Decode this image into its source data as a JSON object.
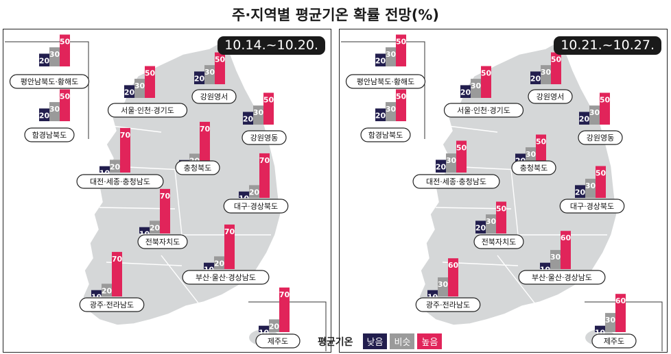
{
  "title": "주·지역별 평균기온 확률 전망(%)",
  "legend": {
    "title": "평균기온",
    "low": "낮음",
    "mid": "비슷",
    "high": "높음"
  },
  "colors": {
    "low": "#221e4e",
    "mid": "#9a9a9a",
    "high": "#e1245a",
    "map": "#d5d7d8"
  },
  "chart_data": [
    {
      "type": "bar",
      "period": "10.14.~10.20.",
      "categories": [
        "낮음",
        "비슷",
        "높음"
      ],
      "regions": [
        {
          "name": "평안남북도·황해도",
          "values": [
            20,
            30,
            50
          ]
        },
        {
          "name": "함경남북도",
          "values": [
            20,
            30,
            50
          ]
        },
        {
          "name": "서울·인천·경기도",
          "values": [
            20,
            30,
            50
          ]
        },
        {
          "name": "강원영서",
          "values": [
            20,
            30,
            50
          ]
        },
        {
          "name": "강원영동",
          "values": [
            20,
            30,
            50
          ]
        },
        {
          "name": "대전·세종·충청남도",
          "values": [
            10,
            20,
            70
          ]
        },
        {
          "name": "충청북도",
          "values": [
            10,
            20,
            70
          ]
        },
        {
          "name": "대구·경상북도",
          "values": [
            10,
            20,
            70
          ]
        },
        {
          "name": "전북자치도",
          "values": [
            10,
            20,
            70
          ]
        },
        {
          "name": "부산·울산·경상남도",
          "values": [
            10,
            20,
            70
          ]
        },
        {
          "name": "광주·전라남도",
          "values": [
            10,
            20,
            70
          ]
        },
        {
          "name": "제주도",
          "values": [
            10,
            20,
            70
          ]
        }
      ]
    },
    {
      "type": "bar",
      "period": "10.21.~10.27.",
      "categories": [
        "낮음",
        "비슷",
        "높음"
      ],
      "regions": [
        {
          "name": "평안남북도·황해도",
          "values": [
            20,
            30,
            50
          ]
        },
        {
          "name": "함경남북도",
          "values": [
            20,
            30,
            50
          ]
        },
        {
          "name": "서울·인천·경기도",
          "values": [
            20,
            30,
            50
          ]
        },
        {
          "name": "강원영서",
          "values": [
            20,
            30,
            50
          ]
        },
        {
          "name": "강원영동",
          "values": [
            20,
            30,
            50
          ]
        },
        {
          "name": "대전·세종·충청남도",
          "values": [
            20,
            30,
            50
          ]
        },
        {
          "name": "충청북도",
          "values": [
            20,
            30,
            50
          ]
        },
        {
          "name": "대구·경상북도",
          "values": [
            20,
            30,
            50
          ]
        },
        {
          "name": "전북자치도",
          "values": [
            20,
            30,
            50
          ]
        },
        {
          "name": "부산·울산·경상남도",
          "values": [
            10,
            30,
            60
          ]
        },
        {
          "name": "광주·전라남도",
          "values": [
            10,
            30,
            60
          ]
        },
        {
          "name": "제주도",
          "values": [
            10,
            30,
            60
          ]
        }
      ]
    }
  ]
}
